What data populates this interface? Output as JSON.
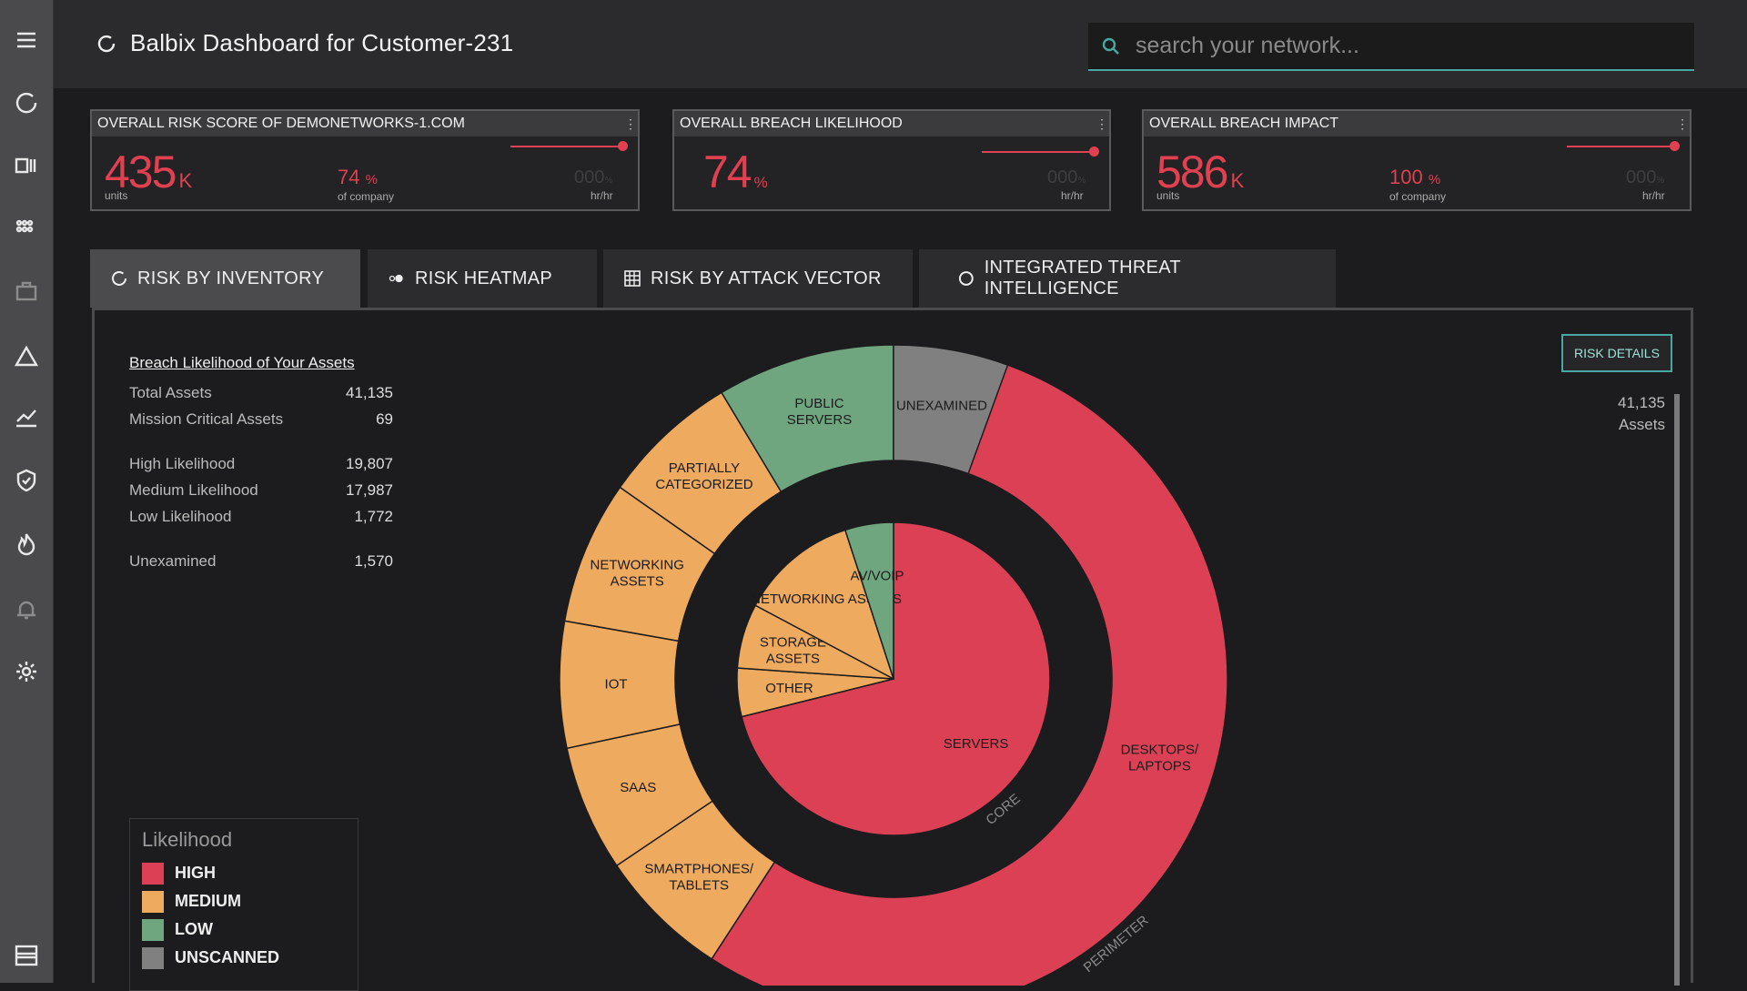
{
  "app": {
    "title": "Balbix Dashboard for Customer-231"
  },
  "search": {
    "placeholder": "search your network..."
  },
  "sidebar": {
    "items": [
      "menu-icon",
      "dashboard-icon",
      "inventory-icon",
      "grid-icon",
      "briefcase-icon",
      "alert-triangle-icon",
      "trend-chart-icon",
      "shield-icon",
      "fire-icon",
      "bell-icon",
      "gear-icon",
      "layout-icon"
    ]
  },
  "kpis": [
    {
      "title": "OVERALL RISK SCORE OF DEMONETWORKS-1.COM",
      "value": "435",
      "unit": "K",
      "sub": "units",
      "mid_value": "74",
      "mid_unit": "%",
      "mid_sub": "of company",
      "ghost": "000",
      "ghost_unit": "%",
      "rate": "hr/hr"
    },
    {
      "title": "OVERALL BREACH LIKELIHOOD",
      "value": "74",
      "unit": "%",
      "sub": "",
      "mid_value": "",
      "mid_unit": "",
      "mid_sub": "",
      "ghost": "000",
      "ghost_unit": "%",
      "rate": "hr/hr"
    },
    {
      "title": "OVERALL BREACH IMPACT",
      "value": "586",
      "unit": "K",
      "sub": "units",
      "mid_value": "100",
      "mid_unit": "%",
      "mid_sub": "of company",
      "ghost": "000",
      "ghost_unit": "%",
      "rate": "hr/hr"
    }
  ],
  "tabs": [
    {
      "label": "RISK BY INVENTORY",
      "icon": "refresh-icon",
      "active": true
    },
    {
      "label": "RISK HEATMAP",
      "icon": "heatmap-icon",
      "active": false
    },
    {
      "label": "RISK BY ATTACK VECTOR",
      "icon": "grid-table-icon",
      "active": false
    },
    {
      "label": "INTEGRATED THREAT INTELLIGENCE",
      "icon": "circle-icon",
      "active": false
    }
  ],
  "stats": {
    "title": "Breach Likelihood of Your Assets",
    "rows": [
      {
        "label": "Total Assets",
        "value": "41,135"
      },
      {
        "label": "Mission Critical Assets",
        "value": "69"
      },
      {
        "label": "High Likelihood",
        "value": "19,807"
      },
      {
        "label": "Medium Likelihood",
        "value": "17,987"
      },
      {
        "label": "Low Likelihood",
        "value": "1,772"
      },
      {
        "label": "Unexamined",
        "value": "1,570"
      }
    ]
  },
  "legend": {
    "title": "Likelihood",
    "items": [
      {
        "label": "HIGH",
        "color": "#dc4054"
      },
      {
        "label": "MEDIUM",
        "color": "#eeaa5e"
      },
      {
        "label": "LOW",
        "color": "#6fa680"
      },
      {
        "label": "UNSCANNED",
        "color": "#808080"
      }
    ]
  },
  "risk_details": {
    "label": "RISK DETAILS"
  },
  "asset_total": {
    "count": "41,135",
    "label": "Assets"
  },
  "chart": {
    "ring_labels": {
      "inner": "CORE",
      "outer": "PERIMETER"
    },
    "inner_segments": [
      {
        "label": "SERVERS",
        "likelihood": "HIGH",
        "color": "#dc4054",
        "deg": 256
      },
      {
        "label": "OTHER",
        "likelihood": "MEDIUM",
        "color": "#eeaa5e",
        "deg": 18
      },
      {
        "label": "STORAGE ASSETS",
        "likelihood": "MEDIUM",
        "color": "#eeaa5e",
        "deg": 24
      },
      {
        "label": "NETWORKING ASSETS",
        "likelihood": "MEDIUM",
        "color": "#eeaa5e",
        "deg": 44
      },
      {
        "label": "AV/VOIP",
        "likelihood": "LOW",
        "color": "#6fa680",
        "deg": 18
      }
    ],
    "outer_segments": [
      {
        "label": "DESKTOPS/ LAPTOPS",
        "likelihood": "HIGH",
        "color": "#dc4054",
        "deg": 213
      },
      {
        "label": "SMARTPHONES/ TABLETS",
        "likelihood": "MEDIUM",
        "color": "#eeaa5e",
        "deg": 23
      },
      {
        "label": "SAAS",
        "likelihood": "MEDIUM",
        "color": "#eeaa5e",
        "deg": 22
      },
      {
        "label": "IOT",
        "likelihood": "MEDIUM",
        "color": "#eeaa5e",
        "deg": 22
      },
      {
        "label": "NETWORKING ASSETS",
        "likelihood": "MEDIUM",
        "color": "#eeaa5e",
        "deg": 25
      },
      {
        "label": "PARTIALLY CATEGORIZED",
        "likelihood": "MEDIUM",
        "color": "#eeaa5e",
        "deg": 24
      },
      {
        "label": "PUBLIC SERVERS",
        "likelihood": "LOW",
        "color": "#6fa680",
        "deg": 31
      },
      {
        "label": "UNEXAMINED",
        "likelihood": "UNSCANNED",
        "color": "#808080",
        "deg": 20
      }
    ]
  }
}
